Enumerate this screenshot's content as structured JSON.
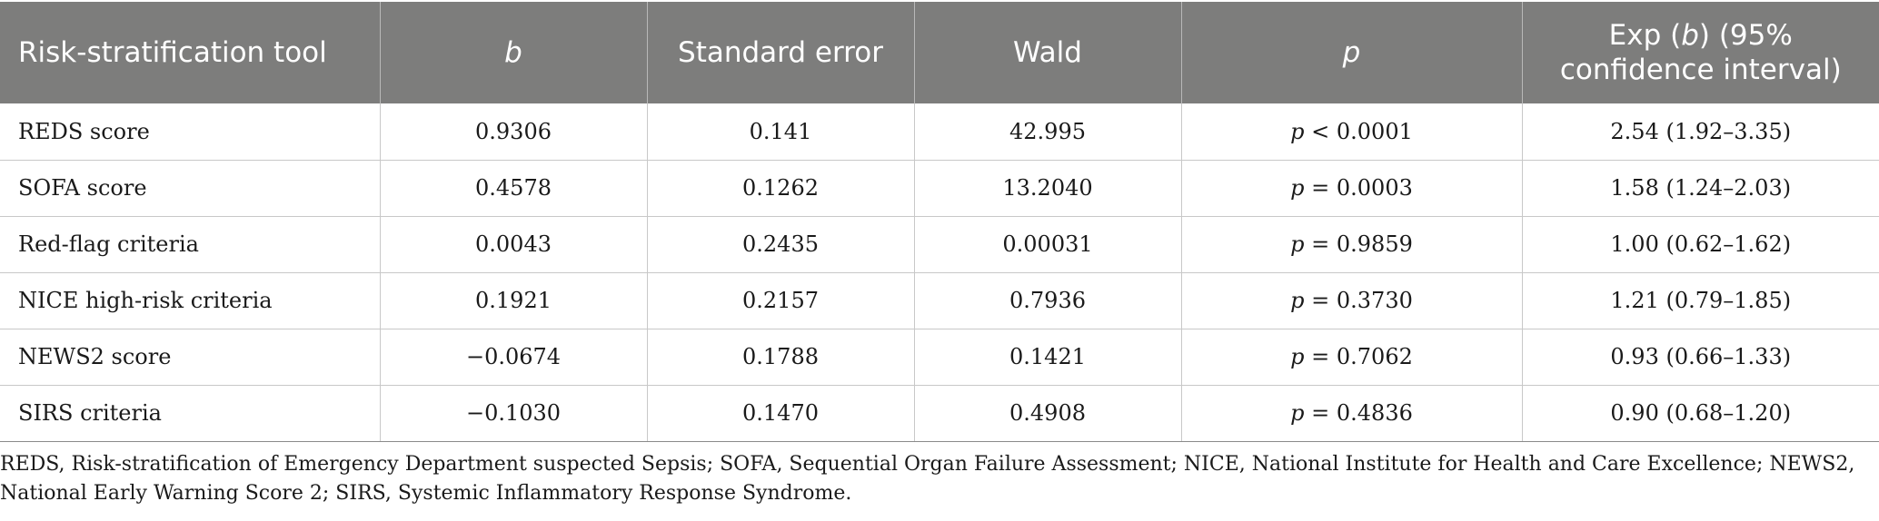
{
  "table": {
    "headers": {
      "tool": "Risk-stratification tool",
      "b": "b",
      "se": "Standard error",
      "wald": "Wald",
      "p": "p",
      "exp_prefix": "Exp (",
      "exp_b": "b",
      "exp_suffix": ") (95% confidence interval)"
    },
    "rows": [
      {
        "tool": "REDS score",
        "b": "0.9306",
        "se": "0.141",
        "wald": "42.995",
        "p_sym": "p",
        "p_val": " < 0.0001",
        "exp": "2.54 (1.92–3.35)"
      },
      {
        "tool": "SOFA score",
        "b": "0.4578",
        "se": "0.1262",
        "wald": "13.2040",
        "p_sym": "p",
        "p_val": " = 0.0003",
        "exp": "1.58 (1.24–2.03)"
      },
      {
        "tool": "Red-flag criteria",
        "b": "0.0043",
        "se": "0.2435",
        "wald": "0.00031",
        "p_sym": "p",
        "p_val": " = 0.9859",
        "exp": "1.00 (0.62–1.62)"
      },
      {
        "tool": "NICE high-risk criteria",
        "b": "0.1921",
        "se": "0.2157",
        "wald": "0.7936",
        "p_sym": "p",
        "p_val": " = 0.3730",
        "exp": "1.21 (0.79–1.85)"
      },
      {
        "tool": "NEWS2 score",
        "b": "−0.0674",
        "se": "0.1788",
        "wald": "0.1421",
        "p_sym": "p",
        "p_val": " = 0.7062",
        "exp": "0.93 (0.66–1.33)"
      },
      {
        "tool": "SIRS criteria",
        "b": "−0.1030",
        "se": "0.1470",
        "wald": "0.4908",
        "p_sym": "p",
        "p_val": " = 0.4836",
        "exp": "0.90 (0.68–1.20)"
      }
    ]
  },
  "footnote": "REDS, Risk-stratification of Emergency Department suspected Sepsis; SOFA, Sequential Organ Failure Assessment; NICE, National Institute for Health and Care Excellence; NEWS2, National Early Warning Score 2; SIRS, Systemic Inflammatory Response Syndrome."
}
